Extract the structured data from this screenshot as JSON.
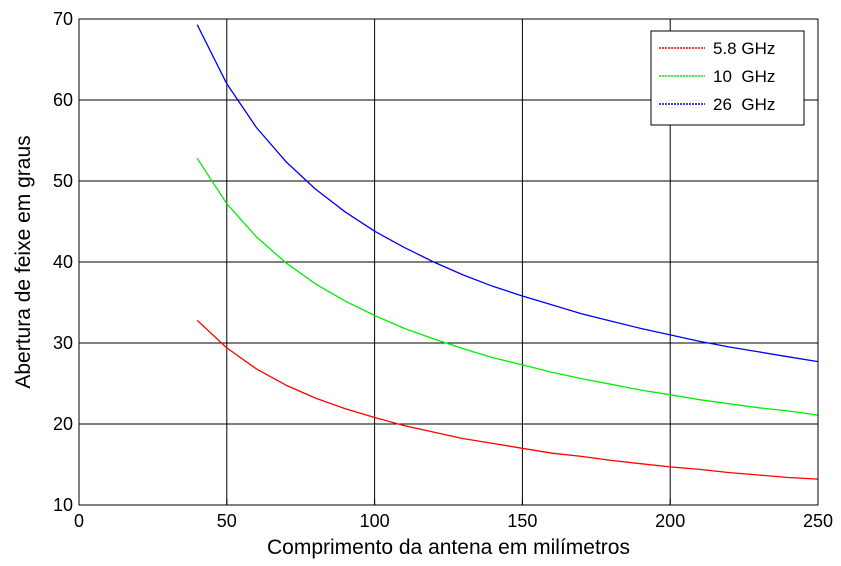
{
  "chart_data": {
    "type": "line",
    "title": "",
    "xlabel": "Comprimento da antena em milímetros",
    "ylabel": "Abertura de feixe em graus",
    "xlim": [
      0,
      250
    ],
    "ylim": [
      10,
      70
    ],
    "xticks": [
      0,
      50,
      100,
      150,
      200,
      250
    ],
    "yticks": [
      10,
      20,
      30,
      40,
      50,
      60,
      70
    ],
    "grid": true,
    "legend_position": "top-right",
    "x": [
      40,
      50,
      60,
      70,
      80,
      90,
      100,
      110,
      120,
      130,
      140,
      150,
      160,
      170,
      180,
      190,
      200,
      210,
      220,
      230,
      240,
      250
    ],
    "series": [
      {
        "name": "5.8 GHz",
        "color": "#ff0000",
        "values": [
          32.8,
          29.4,
          26.8,
          24.8,
          23.2,
          21.9,
          20.8,
          19.8,
          19.0,
          18.2,
          17.6,
          17.0,
          16.4,
          16.0,
          15.5,
          15.1,
          14.7,
          14.4,
          14.0,
          13.7,
          13.4,
          13.2
        ]
      },
      {
        "name": "10  GHz",
        "color": "#00ee00",
        "values": [
          52.8,
          47.2,
          43.1,
          39.9,
          37.3,
          35.2,
          33.4,
          31.8,
          30.5,
          29.3,
          28.2,
          27.3,
          26.4,
          25.6,
          24.9,
          24.2,
          23.6,
          23.0,
          22.5,
          22.0,
          21.6,
          21.1
        ]
      },
      {
        "name": "26  GHz",
        "color": "#0000ff",
        "values": [
          69.3,
          62.0,
          56.6,
          52.4,
          49.0,
          46.2,
          43.8,
          41.8,
          40.0,
          38.4,
          37.0,
          35.8,
          34.7,
          33.6,
          32.7,
          31.8,
          31.0,
          30.2,
          29.5,
          28.9,
          28.3,
          27.7
        ]
      }
    ]
  }
}
